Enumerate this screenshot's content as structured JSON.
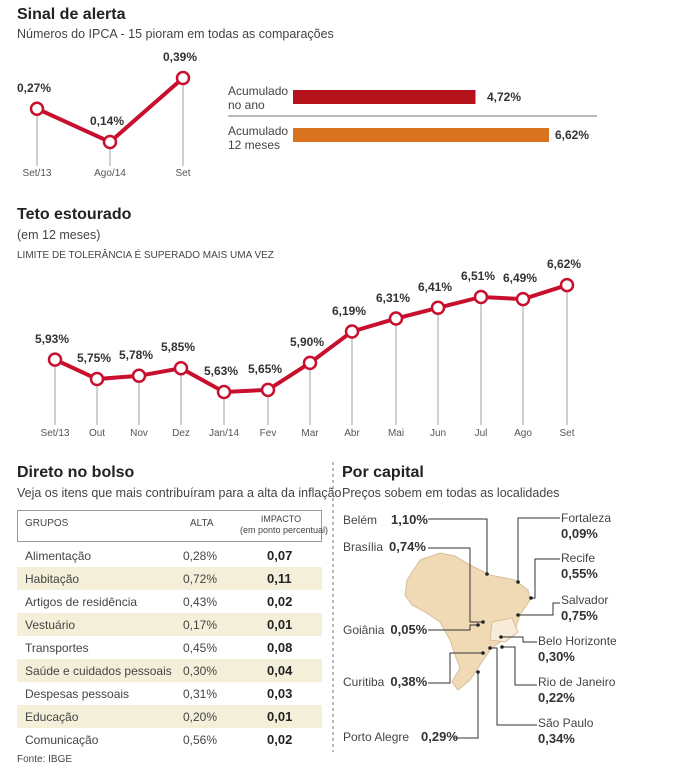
{
  "sinal": {
    "title": "Sinal de alerta",
    "subtitle": "Números do IPCA - 15 pioram em todas as comparações",
    "chart_data": {
      "type": "line",
      "categories": [
        "Set/13",
        "Ago/14",
        "Set"
      ],
      "values": [
        0.27,
        0.14,
        0.39
      ],
      "labels": [
        "0,27%",
        "0,14%",
        "0,39%"
      ],
      "color": "#c8102e"
    },
    "bars": {
      "type": "bar",
      "items": [
        {
          "label_line1": "Acumulado",
          "label_line2": "no ano",
          "value": 4.72,
          "text": "4,72%",
          "color": "#b5121b"
        },
        {
          "label_line1": "Acumulado",
          "label_line2": "12 meses",
          "value": 6.62,
          "text": "6,62%",
          "color": "#d9731f"
        }
      ]
    }
  },
  "teto": {
    "title": "Teto estourado",
    "subtitle": "(em 12 meses)",
    "note": "LIMITE DE TOLERÂNCIA É SUPERADO MAIS UMA VEZ",
    "chart_data": {
      "type": "line",
      "categories": [
        "Set/13",
        "Out",
        "Nov",
        "Dez",
        "Jan/14",
        "Fev",
        "Mar",
        "Abr",
        "Mai",
        "Jun",
        "Jul",
        "Ago",
        "Set"
      ],
      "values": [
        5.93,
        5.75,
        5.78,
        5.85,
        5.63,
        5.65,
        5.9,
        6.19,
        6.31,
        6.41,
        6.51,
        6.49,
        6.62
      ],
      "labels": [
        "5,93%",
        "5,75%",
        "5,78%",
        "5,85%",
        "5,63%",
        "5,65%",
        "5,90%",
        "6,19%",
        "6,31%",
        "6,41%",
        "6,51%",
        "6,49%",
        "6,62%"
      ],
      "color": "#c8102e"
    }
  },
  "bolso": {
    "title": "Direto no bolso",
    "subtitle": "Veja os itens que mais contribuíram para a alta da inflação",
    "headers": {
      "grupos": "GRUPOS",
      "alta": "ALTA",
      "impacto": "IMPACTO",
      "impacto_sub": "(em ponto percentual)"
    },
    "rows": [
      {
        "grupo": "Alimentação",
        "alta": "0,28%",
        "impacto": "0,07"
      },
      {
        "grupo": "Habitação",
        "alta": "0,72%",
        "impacto": "0,11"
      },
      {
        "grupo": "Artigos de residência",
        "alta": "0,43%",
        "impacto": "0,02"
      },
      {
        "grupo": "Vestuário",
        "alta": "0,17%",
        "impacto": "0,01"
      },
      {
        "grupo": "Transportes",
        "alta": "0,45%",
        "impacto": "0,08"
      },
      {
        "grupo": "Saúde e cuidados pessoais",
        "alta": "0,30%",
        "impacto": "0,04"
      },
      {
        "grupo": "Despesas pessoais",
        "alta": "0,31%",
        "impacto": "0,03"
      },
      {
        "grupo": "Educação",
        "alta": "0,20%",
        "impacto": "0,01"
      },
      {
        "grupo": "Comunicação",
        "alta": "0,56%",
        "impacto": "0,02"
      }
    ],
    "source": "Fonte: IBGE",
    "stripe_color": "#f3efd9"
  },
  "capital": {
    "title": "Por capital",
    "subtitle": "Preços sobem em todas as localidades",
    "map_color": "#f0d9b5",
    "cities": {
      "belem": {
        "name": "Belém",
        "value": "1,10%"
      },
      "brasilia": {
        "name": "Brasília",
        "value": "0,74%"
      },
      "goiania": {
        "name": "Goiânia",
        "value": "0,05%"
      },
      "curitiba": {
        "name": "Curitiba",
        "value": "0,38%"
      },
      "porto_alegre": {
        "name": "Porto Alegre",
        "value": "0,29%"
      },
      "fortaleza": {
        "name": "Fortaleza",
        "value": "0,09%"
      },
      "recife": {
        "name": "Recife",
        "value": "0,55%"
      },
      "salvador": {
        "name": "Salvador",
        "value": "0,75%"
      },
      "belo_horizonte": {
        "name": "Belo Horizonte",
        "value": "0,30%"
      },
      "rio": {
        "name": "Rio de Janeiro",
        "value": "0,22%"
      },
      "sao_paulo": {
        "name": "São Paulo",
        "value": "0,34%"
      }
    }
  }
}
